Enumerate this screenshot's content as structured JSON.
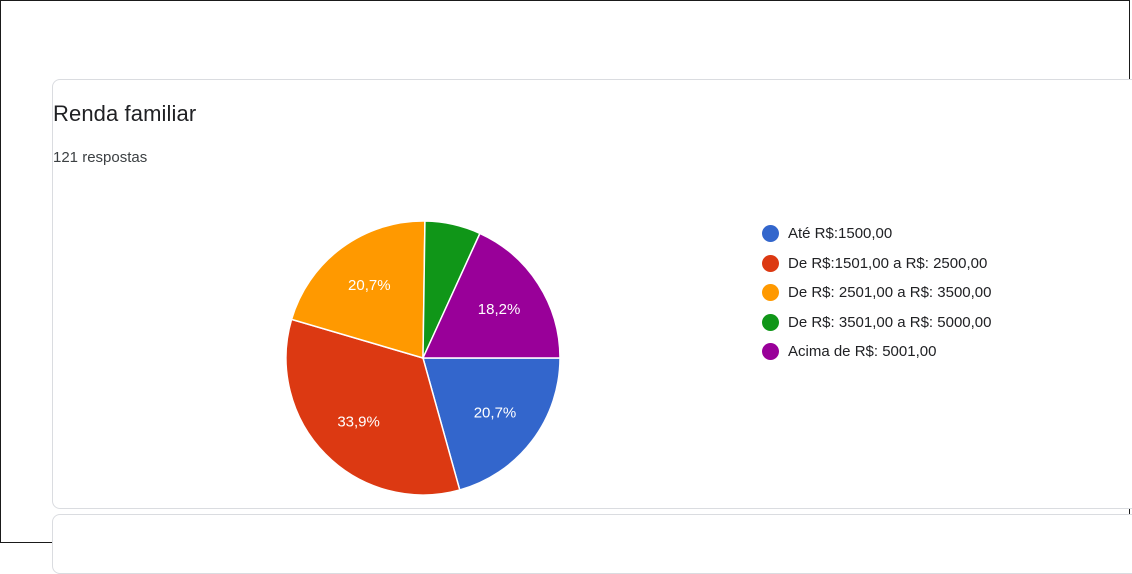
{
  "card": {
    "title": "Renda familiar",
    "responses": "121 respostas"
  },
  "chart_data": {
    "type": "pie",
    "title": "Renda familiar",
    "categories": [
      "Até R$:1500,00",
      "De R$:1501,00 a R$: 2500,00",
      "De R$: 2501,00 a R$: 3500,00",
      "De R$: 3501,00 a R$: 5000,00",
      "Acima de R$: 5001,00"
    ],
    "values": [
      20.7,
      33.9,
      20.7,
      6.6,
      18.2
    ],
    "value_labels": [
      "20,7%",
      "33,9%",
      "20,7%",
      "",
      "18,2%"
    ],
    "colors": [
      "#3366cc",
      "#dc3912",
      "#ff9900",
      "#109618",
      "#990099"
    ],
    "legend_position": "right"
  }
}
